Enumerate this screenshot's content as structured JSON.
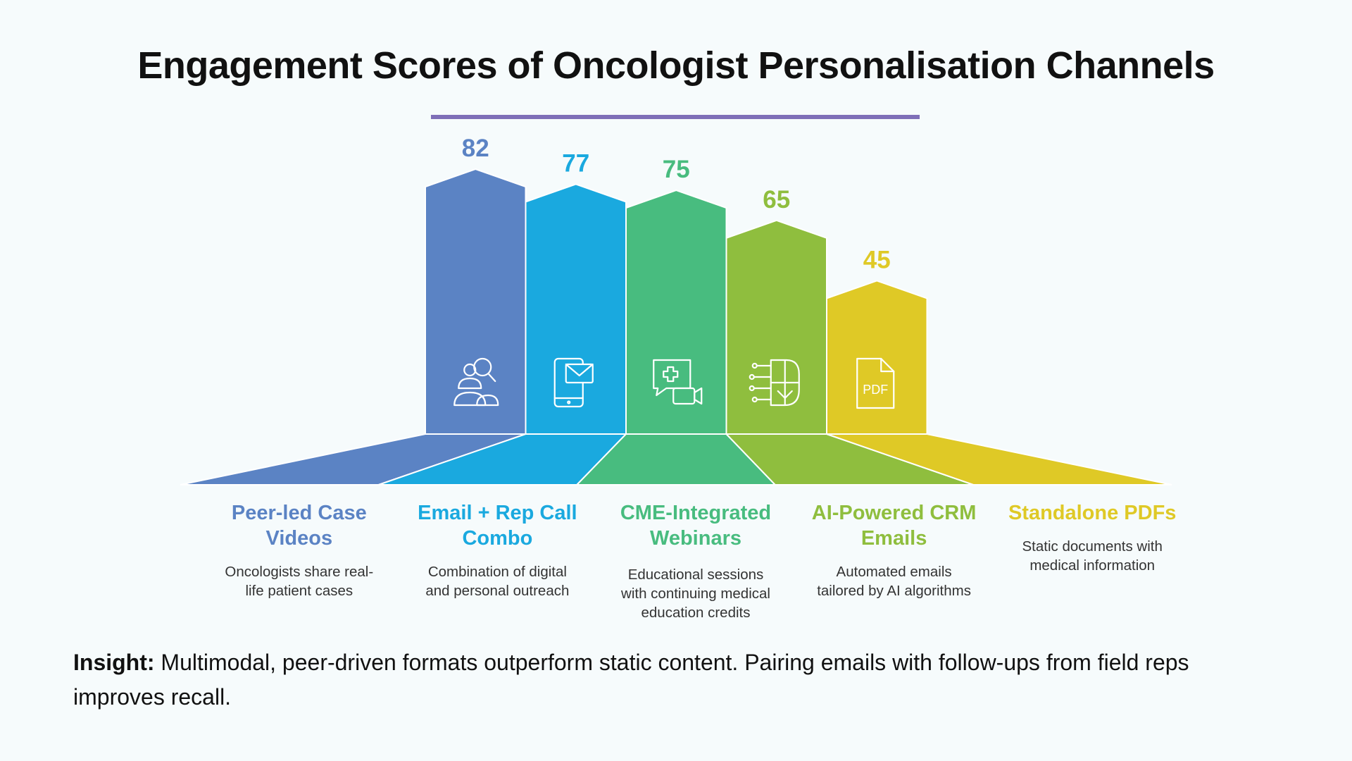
{
  "title": "Engagement Scores of Oncologist Personalisation Channels",
  "chart_data": {
    "type": "bar",
    "title": "Engagement Scores of Oncologist Personalisation Channels",
    "categories": [
      "Peer-led Case Videos",
      "Email + Rep Call Combo",
      "CME-Integrated Webinars",
      "AI-Powered CRM Emails",
      "Standalone PDFs"
    ],
    "values": [
      82,
      77,
      75,
      65,
      45
    ],
    "data_labels": [
      "82",
      "77",
      "75",
      "65",
      "45"
    ],
    "descriptions": [
      [
        "Oncologists share real-",
        "life patient cases"
      ],
      [
        "Combination of digital",
        "and personal outreach"
      ],
      [
        "Educational sessions",
        "with continuing medical",
        "education credits"
      ],
      [
        "Automated emails",
        "tailored by AI algorithms"
      ],
      [
        "Static documents with",
        "medical information"
      ]
    ],
    "label_lines": [
      [
        "Peer-led Case",
        "Videos"
      ],
      [
        "Email + Rep Call",
        "Combo"
      ],
      [
        "CME-Integrated",
        "Webinars"
      ],
      [
        "AI-Powered CRM",
        "Emails"
      ],
      [
        "Standalone PDFs"
      ]
    ],
    "colors": [
      "#5b83c4",
      "#1aa9df",
      "#48bc7f",
      "#8fbe3e",
      "#dfc926"
    ],
    "icons": [
      "doctor-search-icon",
      "mobile-email-icon",
      "medical-video-chat-icon",
      "ai-brain-circuit-icon",
      "pdf-document-icon"
    ],
    "ylim": [
      0,
      100
    ],
    "xlabel": "",
    "ylabel": "",
    "grid": false,
    "legend": "none"
  },
  "insight": {
    "label": "Insight:",
    "text": " Multimodal, peer-driven formats outperform static content. Pairing emails with follow-ups from field reps improves recall."
  },
  "accent_color": "#7f6fb8"
}
